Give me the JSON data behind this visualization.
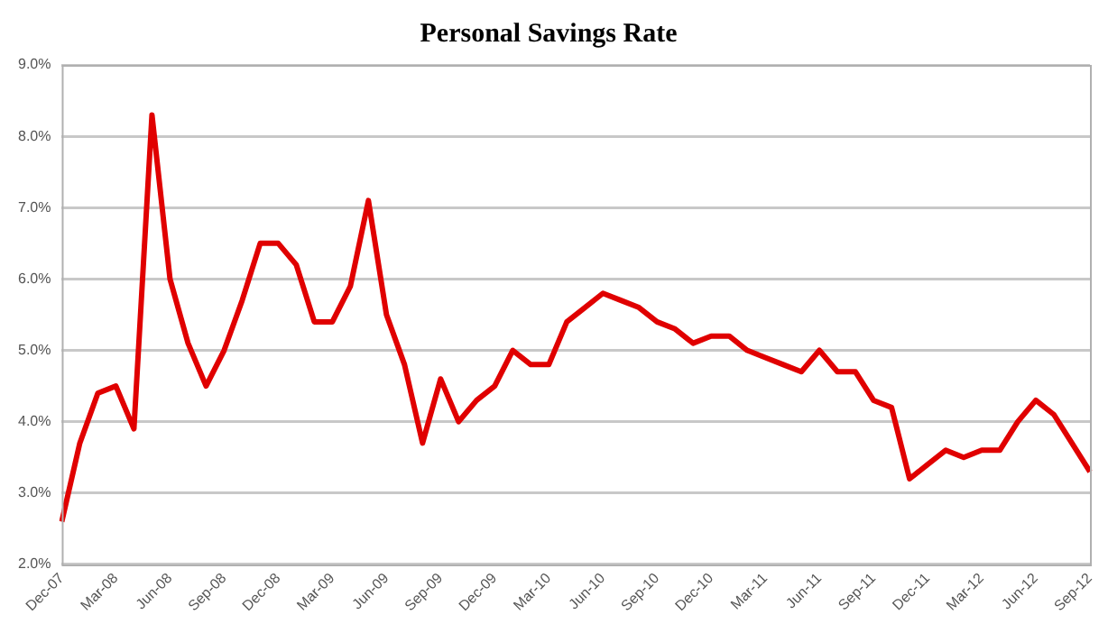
{
  "chart_data": {
    "type": "line",
    "title": "Personal Savings Rate",
    "categories": [
      "Dec-07",
      null,
      null,
      "Mar-08",
      null,
      null,
      "Jun-08",
      null,
      null,
      "Sep-08",
      null,
      null,
      "Dec-08",
      null,
      null,
      "Mar-09",
      null,
      null,
      "Jun-09",
      null,
      null,
      "Sep-09",
      null,
      null,
      "Dec-09",
      null,
      null,
      "Mar-10",
      null,
      null,
      "Jun-10",
      null,
      null,
      "Sep-10",
      null,
      null,
      "Dec-10",
      null,
      null,
      "Mar-11",
      null,
      null,
      "Jun-11",
      null,
      null,
      "Sep-11",
      null,
      null,
      "Dec-11",
      null,
      null,
      "Mar-12",
      null,
      null,
      "Jun-12",
      null,
      null,
      "Sep-12"
    ],
    "series": [
      {
        "color": "#e00000",
        "values": [
          2.6,
          3.7,
          4.4,
          4.5,
          3.9,
          8.3,
          6.0,
          5.1,
          4.5,
          5.0,
          5.7,
          6.5,
          6.5,
          6.2,
          5.4,
          5.4,
          5.9,
          7.1,
          5.5,
          4.8,
          3.7,
          4.6,
          4.0,
          4.3,
          4.5,
          5.0,
          4.8,
          4.8,
          5.4,
          5.6,
          5.8,
          5.7,
          5.6,
          5.4,
          5.3,
          5.1,
          5.2,
          5.2,
          5.0,
          4.9,
          4.8,
          4.7,
          5.0,
          4.7,
          4.7,
          4.3,
          4.2,
          3.2,
          3.4,
          3.6,
          3.5,
          3.6,
          3.6,
          4.0,
          4.3,
          4.1,
          3.7,
          3.3
        ]
      }
    ],
    "ylim": [
      2,
      9
    ],
    "yticks": [
      {
        "value": 2,
        "label": "2.0%"
      },
      {
        "value": 3,
        "label": "3.0%"
      },
      {
        "value": 4,
        "label": "4.0%"
      },
      {
        "value": 5,
        "label": "5.0%"
      },
      {
        "value": 6,
        "label": "6.0%"
      },
      {
        "value": 7,
        "label": "7.0%"
      },
      {
        "value": 8,
        "label": "8.0%"
      },
      {
        "value": 9,
        "label": "9.0%"
      }
    ],
    "grid": "y",
    "marker": "none",
    "line_style": "solid"
  }
}
